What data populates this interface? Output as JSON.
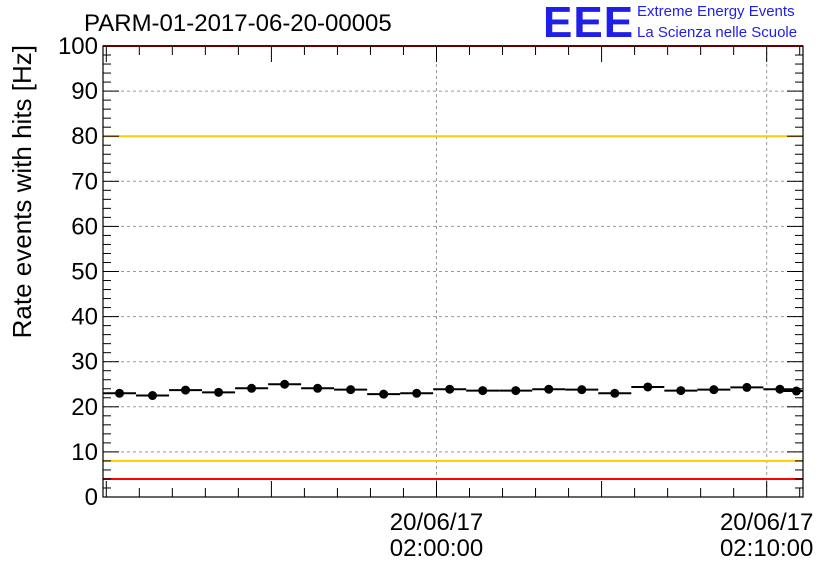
{
  "header": {
    "title": "PARM-01-2017-06-20-00005",
    "logo_mark": "EEE",
    "logo_line1": "Extreme Energy Events",
    "logo_line2": "La Scienza nelle Scuole"
  },
  "chart_data": {
    "type": "scatter",
    "title": "PARM-01-2017-06-20-00005",
    "ylabel": "Rate events with hits [Hz]",
    "xlabel": "",
    "ylim": [
      0,
      100
    ],
    "yticks": [
      0,
      10,
      20,
      30,
      40,
      50,
      60,
      70,
      80,
      90,
      100
    ],
    "xlim": [
      "20/06/17 01:49:54",
      "20/06/17 02:11:06"
    ],
    "xticks": [
      {
        "date": "20/06/17",
        "time": "02:00:00"
      },
      {
        "date": "20/06/17",
        "time": "02:10:00"
      }
    ],
    "grid": true,
    "reference_lines": [
      {
        "y": 100,
        "color": "#ff0000"
      },
      {
        "y": 80,
        "color": "#ffcc00"
      },
      {
        "y": 8,
        "color": "#ffcc00"
      },
      {
        "y": 4,
        "color": "#ff0000"
      }
    ],
    "x_bin_width_minutes": 1,
    "series": [
      {
        "marker_color": "#000000",
        "x": [
          "01:50:24",
          "01:51:24",
          "01:52:24",
          "01:53:24",
          "01:54:24",
          "01:55:24",
          "01:56:24",
          "01:57:24",
          "01:58:24",
          "01:59:24",
          "02:00:24",
          "02:01:24",
          "02:02:24",
          "02:03:24",
          "02:04:24",
          "02:05:24",
          "02:06:24",
          "02:07:24",
          "02:08:24",
          "02:09:24",
          "02:10:24",
          "02:10:54"
        ],
        "values": [
          23.0,
          22.5,
          23.7,
          23.2,
          24.1,
          25.0,
          24.1,
          23.8,
          22.8,
          23.0,
          23.9,
          23.6,
          23.6,
          23.9,
          23.8,
          23.0,
          24.4,
          23.6,
          23.8,
          24.3,
          23.9,
          23.5
        ]
      }
    ]
  }
}
